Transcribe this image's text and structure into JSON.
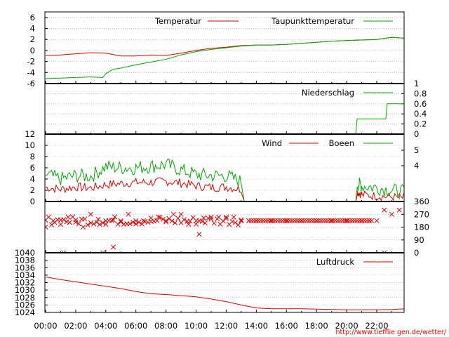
{
  "footer": {
    "url": "http://www.tiefflie gen.de/wetter/"
  },
  "colors": {
    "red": "#dd0000",
    "green": "#00aa00",
    "grid": "#999999",
    "axis": "#000000"
  },
  "chart_data": {
    "type": "line",
    "x_ticks": [
      "00:00",
      "02:00",
      "04:00",
      "06:00",
      "08:00",
      "10:00",
      "12:00",
      "14:00",
      "16:00",
      "18:00",
      "20:00",
      "22:00"
    ],
    "x_range_hours": [
      0,
      24
    ],
    "panels": [
      {
        "name": "temperature",
        "ylim": [
          -6,
          7
        ],
        "yticks_left": [
          6,
          4,
          2,
          0,
          -2,
          -4,
          -6
        ],
        "series": [
          {
            "name": "Temperatur",
            "color": "#dd0000",
            "points": [
              [
                0,
                -0.9
              ],
              [
                1,
                -0.8
              ],
              [
                2,
                -0.6
              ],
              [
                3,
                -0.4
              ],
              [
                4,
                -0.5
              ],
              [
                5,
                -1.0
              ],
              [
                6,
                -1.0
              ],
              [
                7,
                -0.8
              ],
              [
                8,
                -0.9
              ],
              [
                9,
                -0.5
              ],
              [
                10,
                0.0
              ],
              [
                11,
                0.4
              ],
              [
                12,
                0.6
              ],
              [
                13,
                0.9
              ],
              [
                14,
                1.0
              ],
              [
                15,
                1.0
              ],
              [
                16,
                1.1
              ],
              [
                17,
                1.3
              ],
              [
                18,
                1.5
              ],
              [
                19,
                1.7
              ],
              [
                20,
                1.8
              ],
              [
                21,
                1.9
              ],
              [
                22,
                2.0
              ],
              [
                23,
                2.4
              ],
              [
                24,
                2.2
              ]
            ]
          },
          {
            "name": "Taupunkttemperatur",
            "color": "#00aa00",
            "points": [
              [
                0,
                -5.1
              ],
              [
                1,
                -5.0
              ],
              [
                2,
                -4.9
              ],
              [
                3,
                -4.8
              ],
              [
                3.8,
                -4.9
              ],
              [
                4,
                -4.2
              ],
              [
                4.5,
                -3.4
              ],
              [
                5,
                -3.2
              ],
              [
                6,
                -2.6
              ],
              [
                7,
                -2.1
              ],
              [
                8,
                -1.6
              ],
              [
                9,
                -0.8
              ],
              [
                10,
                -0.2
              ],
              [
                11,
                0.2
              ],
              [
                12,
                0.5
              ],
              [
                13,
                0.8
              ],
              [
                14,
                1.0
              ],
              [
                15,
                1.0
              ],
              [
                16,
                1.1
              ],
              [
                17,
                1.3
              ],
              [
                18,
                1.5
              ],
              [
                19,
                1.7
              ],
              [
                20,
                1.8
              ],
              [
                21,
                1.9
              ],
              [
                22,
                2.0
              ],
              [
                23,
                2.4
              ],
              [
                24,
                2.2
              ]
            ]
          }
        ]
      },
      {
        "name": "precipitation",
        "ylim": [
          0,
          1
        ],
        "yticks_right": [
          1,
          0.8,
          0.6,
          0.4,
          0.2,
          0
        ],
        "series": [
          {
            "name": "Niederschlag",
            "color": "#00aa00",
            "points": [
              [
                0,
                0
              ],
              [
                20.6,
                0
              ],
              [
                20.7,
                0.3
              ],
              [
                22.6,
                0.3
              ],
              [
                22.7,
                0.6
              ],
              [
                24,
                0.6
              ]
            ]
          }
        ]
      },
      {
        "name": "wind",
        "ylim": [
          0,
          12
        ],
        "yticks_left": [
          12,
          10,
          8,
          6,
          4,
          2,
          0
        ],
        "yticks_right": [
          5,
          4
        ],
        "series": [
          {
            "name": "Wind",
            "color": "#dd0000",
            "points": [
              [
                0,
                2.5
              ],
              [
                1,
                2.2
              ],
              [
                2,
                2.6
              ],
              [
                3,
                2.4
              ],
              [
                4,
                3.0
              ],
              [
                5,
                3.2
              ],
              [
                6,
                3.4
              ],
              [
                7,
                3.4
              ],
              [
                8,
                3.6
              ],
              [
                9,
                3.3
              ],
              [
                10,
                2.8
              ],
              [
                11,
                2.5
              ],
              [
                12,
                2.6
              ],
              [
                13,
                2.2
              ],
              [
                13.2,
                0
              ],
              [
                20.6,
                0
              ],
              [
                20.7,
                1.8
              ],
              [
                21,
                1.2
              ],
              [
                22,
                1.0
              ],
              [
                23,
                0.8
              ],
              [
                24,
                0.6
              ]
            ]
          },
          {
            "name": "Boeen",
            "color": "#00aa00",
            "points": [
              [
                0,
                4.8
              ],
              [
                1,
                4.0
              ],
              [
                2,
                4.6
              ],
              [
                3,
                4.5
              ],
              [
                4,
                6.2
              ],
              [
                5,
                6.0
              ],
              [
                6,
                6.0
              ],
              [
                7,
                6.3
              ],
              [
                8,
                6.6
              ],
              [
                9,
                5.6
              ],
              [
                10,
                4.8
              ],
              [
                11,
                4.6
              ],
              [
                12,
                4.6
              ],
              [
                13,
                3.5
              ],
              [
                13.2,
                0
              ],
              [
                20.6,
                0
              ],
              [
                20.7,
                3.2
              ],
              [
                21,
                2.8
              ],
              [
                22,
                2.5
              ],
              [
                23,
                2.0
              ],
              [
                24,
                1.6
              ]
            ]
          }
        ]
      },
      {
        "name": "wind-direction",
        "type": "scatter",
        "ylim": [
          0,
          360
        ],
        "yticks_right": [
          360,
          270,
          180,
          90,
          0
        ],
        "series": [
          {
            "name": "",
            "color": "#dd0000",
            "points": [
              [
                0,
                180
              ],
              [
                0.5,
                225
              ],
              [
                1,
                230
              ],
              [
                1.5,
                250
              ],
              [
                2,
                215
              ],
              [
                2.5,
                180
              ],
              [
                3,
                270
              ],
              [
                3.5,
                235
              ],
              [
                4,
                200
              ],
              [
                4.5,
                230
              ],
              [
                5,
                225
              ],
              [
                5.5,
                270
              ],
              [
                6,
                225
              ],
              [
                6.5,
                225
              ],
              [
                7,
                220
              ],
              [
                7.5,
                250
              ],
              [
                8,
                225
              ],
              [
                8.5,
                270
              ],
              [
                9,
                270
              ],
              [
                9.5,
                200
              ],
              [
                10,
                225
              ],
              [
                10.5,
                245
              ],
              [
                11,
                250
              ],
              [
                11.5,
                250
              ],
              [
                12,
                250
              ],
              [
                12.5,
                250
              ],
              [
                13,
                230
              ],
              [
                13.5,
                225
              ],
              [
                14,
                225
              ],
              [
                15,
                225
              ],
              [
                16,
                225
              ],
              [
                17,
                225
              ],
              [
                18,
                225
              ],
              [
                19,
                225
              ],
              [
                20,
                225
              ],
              [
                21,
                225
              ],
              [
                21.5,
                225
              ],
              [
                22,
                225
              ],
              [
                22.5,
                300
              ],
              [
                23,
                270
              ],
              [
                23.5,
                300
              ],
              [
                24,
                270
              ],
              [
                1.2,
                0
              ],
              [
                3.8,
                0
              ],
              [
                4.5,
                40
              ],
              [
                10.2,
                130
              ],
              [
                22.5,
                0
              ]
            ]
          }
        ]
      },
      {
        "name": "pressure",
        "ylim": [
          1024,
          1040
        ],
        "yticks_left": [
          1040,
          1038,
          1036,
          1034,
          1032,
          1030,
          1028,
          1026,
          1024
        ],
        "series": [
          {
            "name": "Luftdruck",
            "color": "#dd0000",
            "points": [
              [
                0,
                1033.5
              ],
              [
                1,
                1032.8
              ],
              [
                2,
                1032.2
              ],
              [
                3,
                1031.6
              ],
              [
                4,
                1031.0
              ],
              [
                5,
                1030.4
              ],
              [
                6,
                1029.6
              ],
              [
                7,
                1029.0
              ],
              [
                8,
                1028.8
              ],
              [
                9,
                1028.5
              ],
              [
                10,
                1028.2
              ],
              [
                11,
                1027.6
              ],
              [
                12,
                1026.9
              ],
              [
                13,
                1026.0
              ],
              [
                14,
                1025.2
              ],
              [
                15,
                1025.0
              ],
              [
                16,
                1025.0
              ],
              [
                17,
                1025.0
              ],
              [
                18,
                1024.9
              ],
              [
                19,
                1024.8
              ],
              [
                20,
                1024.7
              ],
              [
                21,
                1024.7
              ],
              [
                22,
                1024.7
              ],
              [
                23,
                1024.8
              ],
              [
                24,
                1025.0
              ]
            ]
          }
        ]
      }
    ]
  }
}
